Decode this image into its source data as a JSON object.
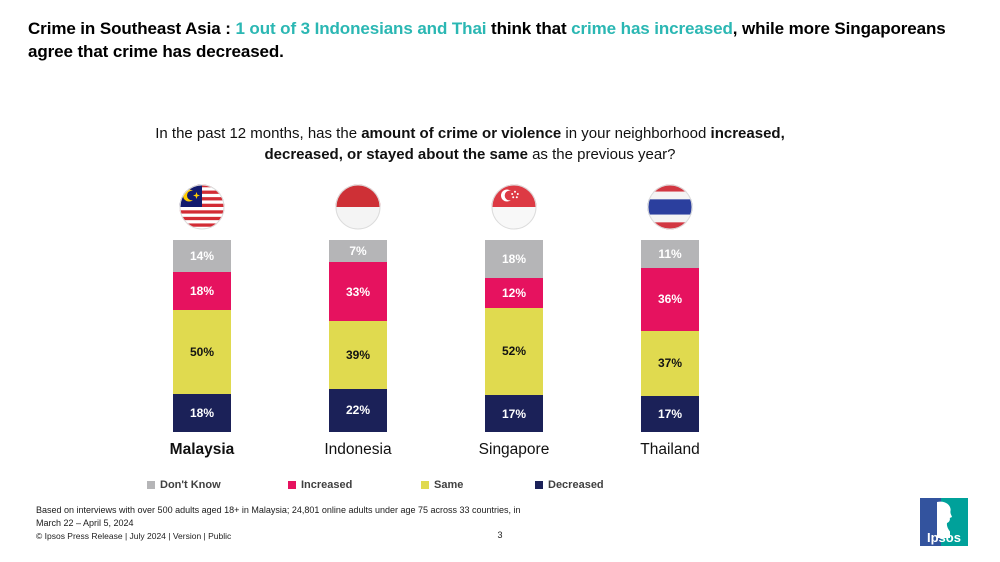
{
  "title": {
    "part1": "Crime in Southeast Asia : ",
    "part2": "1 out of 3 Indonesians and Thai",
    "part3": " think that ",
    "part4": "crime has increased",
    "part5": ", while more Singaporeans agree that crime has decreased.",
    "accent_color": "#2BB7B3"
  },
  "question": {
    "part1": "In the past 12 months, has the ",
    "part2": "amount of crime or violence",
    "part3": " in your neighborhood ",
    "part4": "increased, decreased, or stayed about the same",
    "part5": " as the previous year?"
  },
  "chart_data": {
    "type": "bar",
    "stacked": true,
    "orientation": "vertical",
    "categories": [
      "Malaysia",
      "Indonesia",
      "Singapore",
      "Thailand"
    ],
    "emphasized_category": "Malaysia",
    "flag_icons": [
      "malaysia-flag",
      "indonesia-flag",
      "singapore-flag",
      "thailand-flag"
    ],
    "value_suffix": "%",
    "series": [
      {
        "name": "Don't Know",
        "color": "#B5B5B7",
        "label_color": "#FFFFFF",
        "values": [
          14,
          7,
          18,
          11
        ]
      },
      {
        "name": "Increased",
        "color": "#E6125F",
        "label_color": "#FFFFFF",
        "values": [
          18,
          33,
          12,
          36
        ]
      },
      {
        "name": "Same",
        "color": "#E0DA4F",
        "label_color": "#131313",
        "values": [
          50,
          39,
          52,
          37
        ]
      },
      {
        "name": "Decreased",
        "color": "#1B2158",
        "label_color": "#FFFFFF",
        "values": [
          18,
          22,
          17,
          17
        ]
      }
    ],
    "legend_position": "bottom",
    "axes": "none",
    "gridlines": false
  },
  "footer": {
    "footnote": "Based on interviews with over 500 adults aged 18+ in Malaysia; 24,801 online adults under age 75 across 33 countries, in March 22 – April 5, 2024",
    "copyright": "© Ipsos  Press Release | July 2024 | Version | Public",
    "page_number": "3",
    "logo_text": "Ipsos"
  }
}
